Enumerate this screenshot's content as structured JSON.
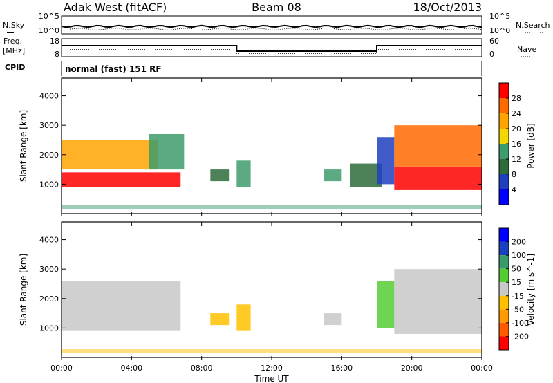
{
  "header": {
    "radar": "Adak West (fitACF)",
    "beam": "Beam 08",
    "date": "18/Oct/2013"
  },
  "noise_panel": {
    "left_label": "N.Sky",
    "right_label": "N.Search",
    "left_ticks": [
      "10^5",
      "10^0"
    ],
    "right_ticks": [
      "10^5",
      "10^0"
    ]
  },
  "freq_panel": {
    "left_label_1": "Freq.",
    "left_label_2": "[MHz]",
    "right_label": "Nave",
    "left_ticks": [
      "18",
      "8"
    ],
    "right_ticks": [
      "60",
      "0"
    ],
    "cpid_label": "CPID",
    "cpid_text": "normal (fast) 151 RF"
  },
  "colors": {
    "power_scale": [
      "#0000ff",
      "#1f3fbf",
      "#2e6b3a",
      "#3e9b6b",
      "#f2d800",
      "#ffa500",
      "#ff6a00",
      "#ff0000"
    ],
    "velocity_scale": [
      "#ff0000",
      "#ff5a00",
      "#ff9a00",
      "#ffc000",
      "#c8c8c8",
      "#55cc33",
      "#3a9a6a",
      "#1a3fbf",
      "#0000ff"
    ]
  },
  "chart_data": [
    {
      "type": "heatmap",
      "title": "Power",
      "ylabel": "Slant Range [km]",
      "ylim": [
        0,
        4600
      ],
      "yticks": [
        1000,
        2000,
        3000,
        4000
      ],
      "colorbar_label": "Power [dB]",
      "colorbar_ticks": [
        "28",
        "24",
        "20",
        "16",
        "12",
        "8",
        "4"
      ],
      "color_range": [
        0,
        32
      ],
      "echo_regions": [
        {
          "t_start": 0.0,
          "t_end": 6.8,
          "range_km": [
            900,
            1400
          ],
          "power_db": 28
        },
        {
          "t_start": 0.0,
          "t_end": 5.5,
          "range_km": [
            1500,
            2500
          ],
          "power_db": 22
        },
        {
          "t_start": 5.0,
          "t_end": 7.0,
          "range_km": [
            1500,
            2700
          ],
          "power_db": 14
        },
        {
          "t_start": 8.5,
          "t_end": 9.6,
          "range_km": [
            1100,
            1500
          ],
          "power_db": 10
        },
        {
          "t_start": 10.0,
          "t_end": 10.8,
          "range_km": [
            900,
            1800
          ],
          "power_db": 14
        },
        {
          "t_start": 15.0,
          "t_end": 16.0,
          "range_km": [
            1100,
            1500
          ],
          "power_db": 12
        },
        {
          "t_start": 16.5,
          "t_end": 18.3,
          "range_km": [
            900,
            1700
          ],
          "power_db": 8
        },
        {
          "t_start": 18.0,
          "t_end": 19.0,
          "range_km": [
            1000,
            2600
          ],
          "power_db": 6
        },
        {
          "t_start": 19.0,
          "t_end": 24.0,
          "range_km": [
            800,
            1600
          ],
          "power_db": 28
        },
        {
          "t_start": 19.0,
          "t_end": 24.0,
          "range_km": [
            1600,
            3000
          ],
          "power_db": 24
        }
      ]
    },
    {
      "type": "heatmap",
      "title": "Velocity",
      "ylabel": "Slant Range [km]",
      "xlabel": "Time UT",
      "ylim": [
        0,
        4600
      ],
      "yticks": [
        1000,
        2000,
        3000,
        4000
      ],
      "colorbar_label": "Velocity [m s^-1]",
      "colorbar_ticks": [
        "200",
        "100",
        "50",
        "15",
        "-15",
        "-50",
        "-100",
        "-200"
      ],
      "color_range": [
        -250,
        250
      ],
      "xticks": [
        "00:00",
        "04:00",
        "08:00",
        "12:00",
        "16:00",
        "20:00",
        "00:00"
      ],
      "echo_regions": [
        {
          "t_start": 0.0,
          "t_end": 6.8,
          "range_km": [
            900,
            2600
          ],
          "velocity": 0
        },
        {
          "t_start": 8.5,
          "t_end": 9.6,
          "range_km": [
            1100,
            1500
          ],
          "velocity": -60
        },
        {
          "t_start": 10.0,
          "t_end": 10.8,
          "range_km": [
            900,
            1800
          ],
          "velocity": -60
        },
        {
          "t_start": 15.0,
          "t_end": 16.0,
          "range_km": [
            1100,
            1500
          ],
          "velocity": 0
        },
        {
          "t_start": 18.0,
          "t_end": 19.0,
          "range_km": [
            1000,
            2600
          ],
          "velocity": 40
        },
        {
          "t_start": 19.0,
          "t_end": 24.0,
          "range_km": [
            800,
            3000
          ],
          "velocity": 0
        }
      ]
    }
  ]
}
